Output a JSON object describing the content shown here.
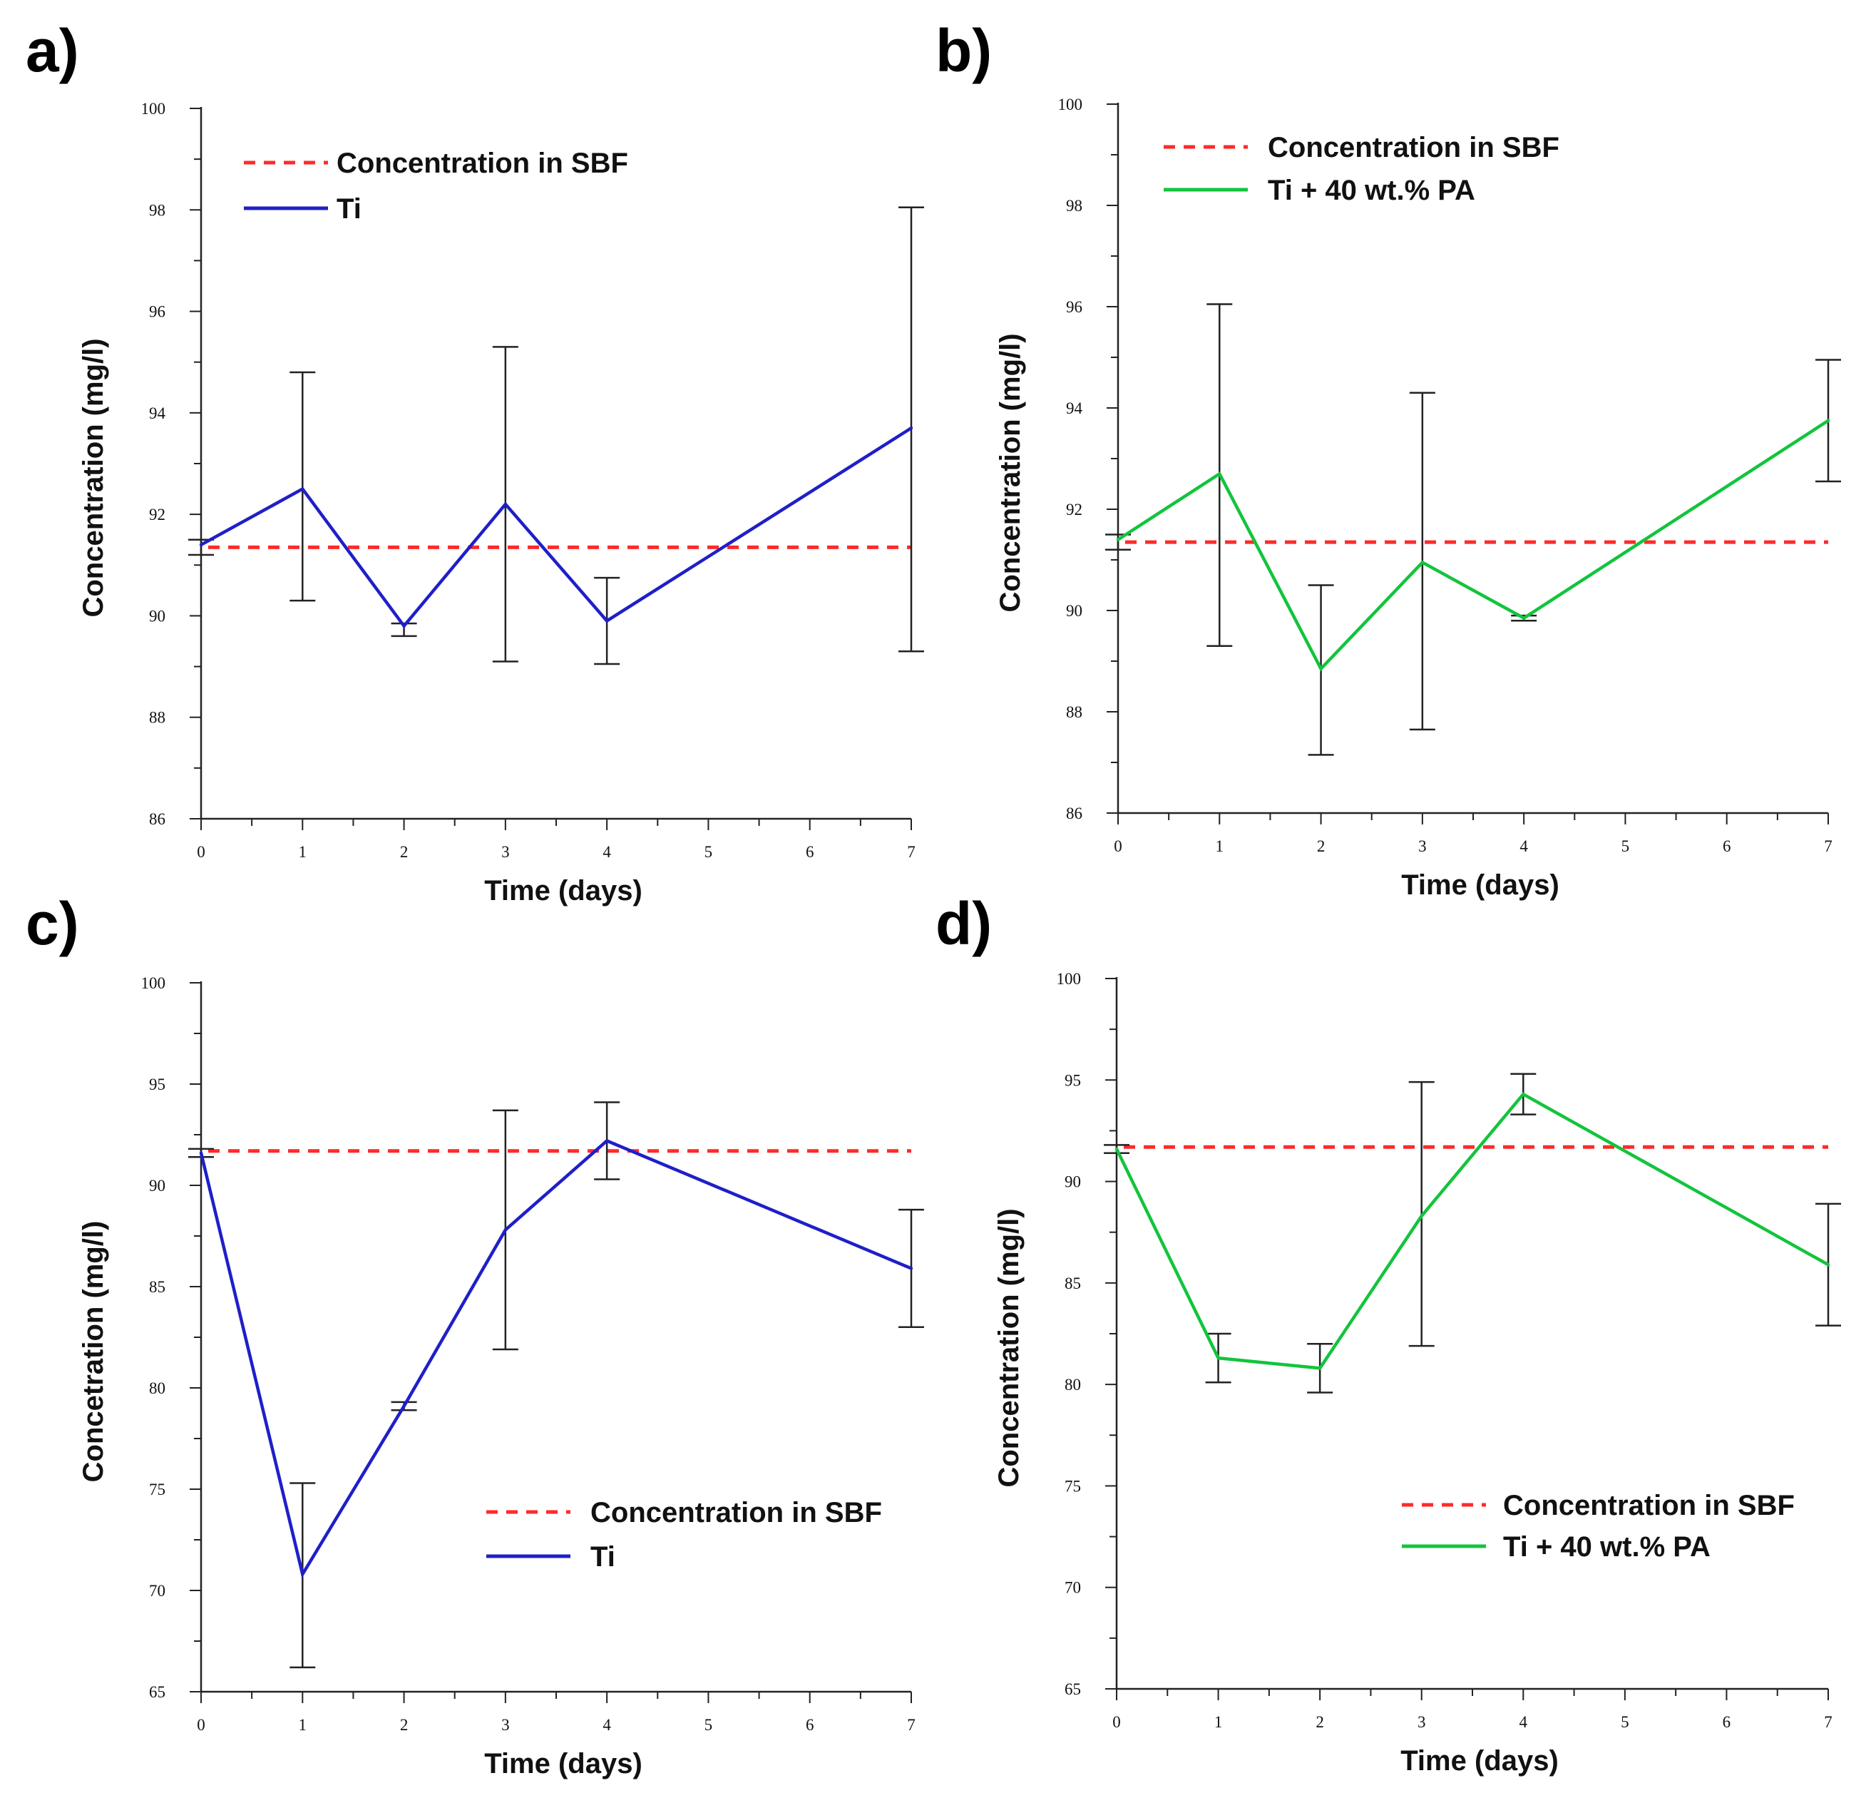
{
  "figure": {
    "panel_labels": [
      "a)",
      "b)",
      "c)",
      "d)"
    ]
  },
  "chart_data": [
    {
      "type": "line",
      "panel": "a)",
      "xlabel": "Time (days)",
      "ylabel": "Concentration (mg/l)",
      "xlim": [
        0,
        7
      ],
      "ylim": [
        86,
        100
      ],
      "x_ticks": [
        0,
        1,
        2,
        3,
        4,
        5,
        6,
        7
      ],
      "y_ticks": [
        86,
        88,
        90,
        92,
        94,
        96,
        98,
        100
      ],
      "legend_position": "top-left",
      "reference": {
        "name": "Concentration in SBF",
        "value": 91.35,
        "color": "#ff2a2a"
      },
      "series": [
        {
          "name": "Ti",
          "color": "#1f1fc8",
          "x": [
            0,
            1,
            2,
            3,
            4,
            7
          ],
          "values": [
            91.4,
            92.5,
            89.8,
            92.2,
            89.9,
            93.7
          ],
          "error_low": [
            91.2,
            90.3,
            89.6,
            89.1,
            89.05,
            89.3
          ],
          "error_high": [
            91.5,
            94.8,
            89.85,
            95.3,
            90.75,
            98.05
          ]
        }
      ]
    },
    {
      "type": "line",
      "panel": "b)",
      "xlabel": "Time (days)",
      "ylabel": "Concentration (mg/l)",
      "xlim": [
        0,
        7
      ],
      "ylim": [
        86,
        100
      ],
      "x_ticks": [
        0,
        1,
        2,
        3,
        4,
        5,
        6,
        7
      ],
      "y_ticks": [
        86,
        88,
        90,
        92,
        94,
        96,
        98,
        100
      ],
      "legend_position": "top-left",
      "reference": {
        "name": "Concentration in SBF",
        "value": 91.35,
        "color": "#ff2a2a"
      },
      "series": [
        {
          "name": "Ti + 40 wt.% PA",
          "color": "#12c43c",
          "x": [
            0,
            1,
            2,
            3,
            4,
            7
          ],
          "values": [
            91.4,
            92.7,
            88.85,
            90.95,
            89.85,
            93.75
          ],
          "error_low": [
            91.2,
            89.3,
            87.15,
            87.65,
            89.8,
            92.55
          ],
          "error_high": [
            91.5,
            96.05,
            90.5,
            94.3,
            89.9,
            94.95
          ]
        }
      ]
    },
    {
      "type": "line",
      "panel": "c)",
      "xlabel": "Time (days)",
      "ylabel": "Concetration (mg/l)",
      "xlim": [
        0,
        7
      ],
      "ylim": [
        65,
        100
      ],
      "x_ticks": [
        0,
        1,
        2,
        3,
        4,
        5,
        6,
        7
      ],
      "y_ticks": [
        65,
        70,
        75,
        80,
        85,
        90,
        95,
        100
      ],
      "legend_position": "bottom-right",
      "reference": {
        "name": "Concentration in SBF",
        "value": 91.7,
        "color": "#ff2a2a"
      },
      "series": [
        {
          "name": "Ti",
          "color": "#1f1fc8",
          "x": [
            0,
            1,
            2,
            3,
            4,
            7
          ],
          "values": [
            91.6,
            70.8,
            79.1,
            87.8,
            92.2,
            85.9
          ],
          "error_low": [
            91.4,
            66.2,
            78.9,
            81.9,
            90.3,
            83.0
          ],
          "error_high": [
            91.8,
            75.3,
            79.3,
            93.7,
            94.1,
            88.8
          ]
        }
      ]
    },
    {
      "type": "line",
      "panel": "d)",
      "xlabel": "Time (days)",
      "ylabel": "Concentration (mg/l)",
      "xlim": [
        0,
        7
      ],
      "ylim": [
        65,
        100
      ],
      "x_ticks": [
        0,
        1,
        2,
        3,
        4,
        5,
        6,
        7
      ],
      "y_ticks": [
        65,
        70,
        75,
        80,
        85,
        90,
        95,
        100
      ],
      "legend_position": "bottom-right",
      "reference": {
        "name": "Concentration in SBF",
        "value": 91.7,
        "color": "#ff2a2a"
      },
      "series": [
        {
          "name": "Ti + 40 wt.% PA",
          "color": "#12c43c",
          "x": [
            0,
            1,
            2,
            3,
            4,
            7
          ],
          "values": [
            91.6,
            81.3,
            80.8,
            88.3,
            94.3,
            85.9
          ],
          "error_low": [
            91.4,
            80.1,
            79.6,
            81.9,
            93.3,
            82.9
          ],
          "error_high": [
            91.8,
            82.5,
            82.0,
            94.9,
            95.3,
            88.9
          ]
        }
      ]
    }
  ]
}
